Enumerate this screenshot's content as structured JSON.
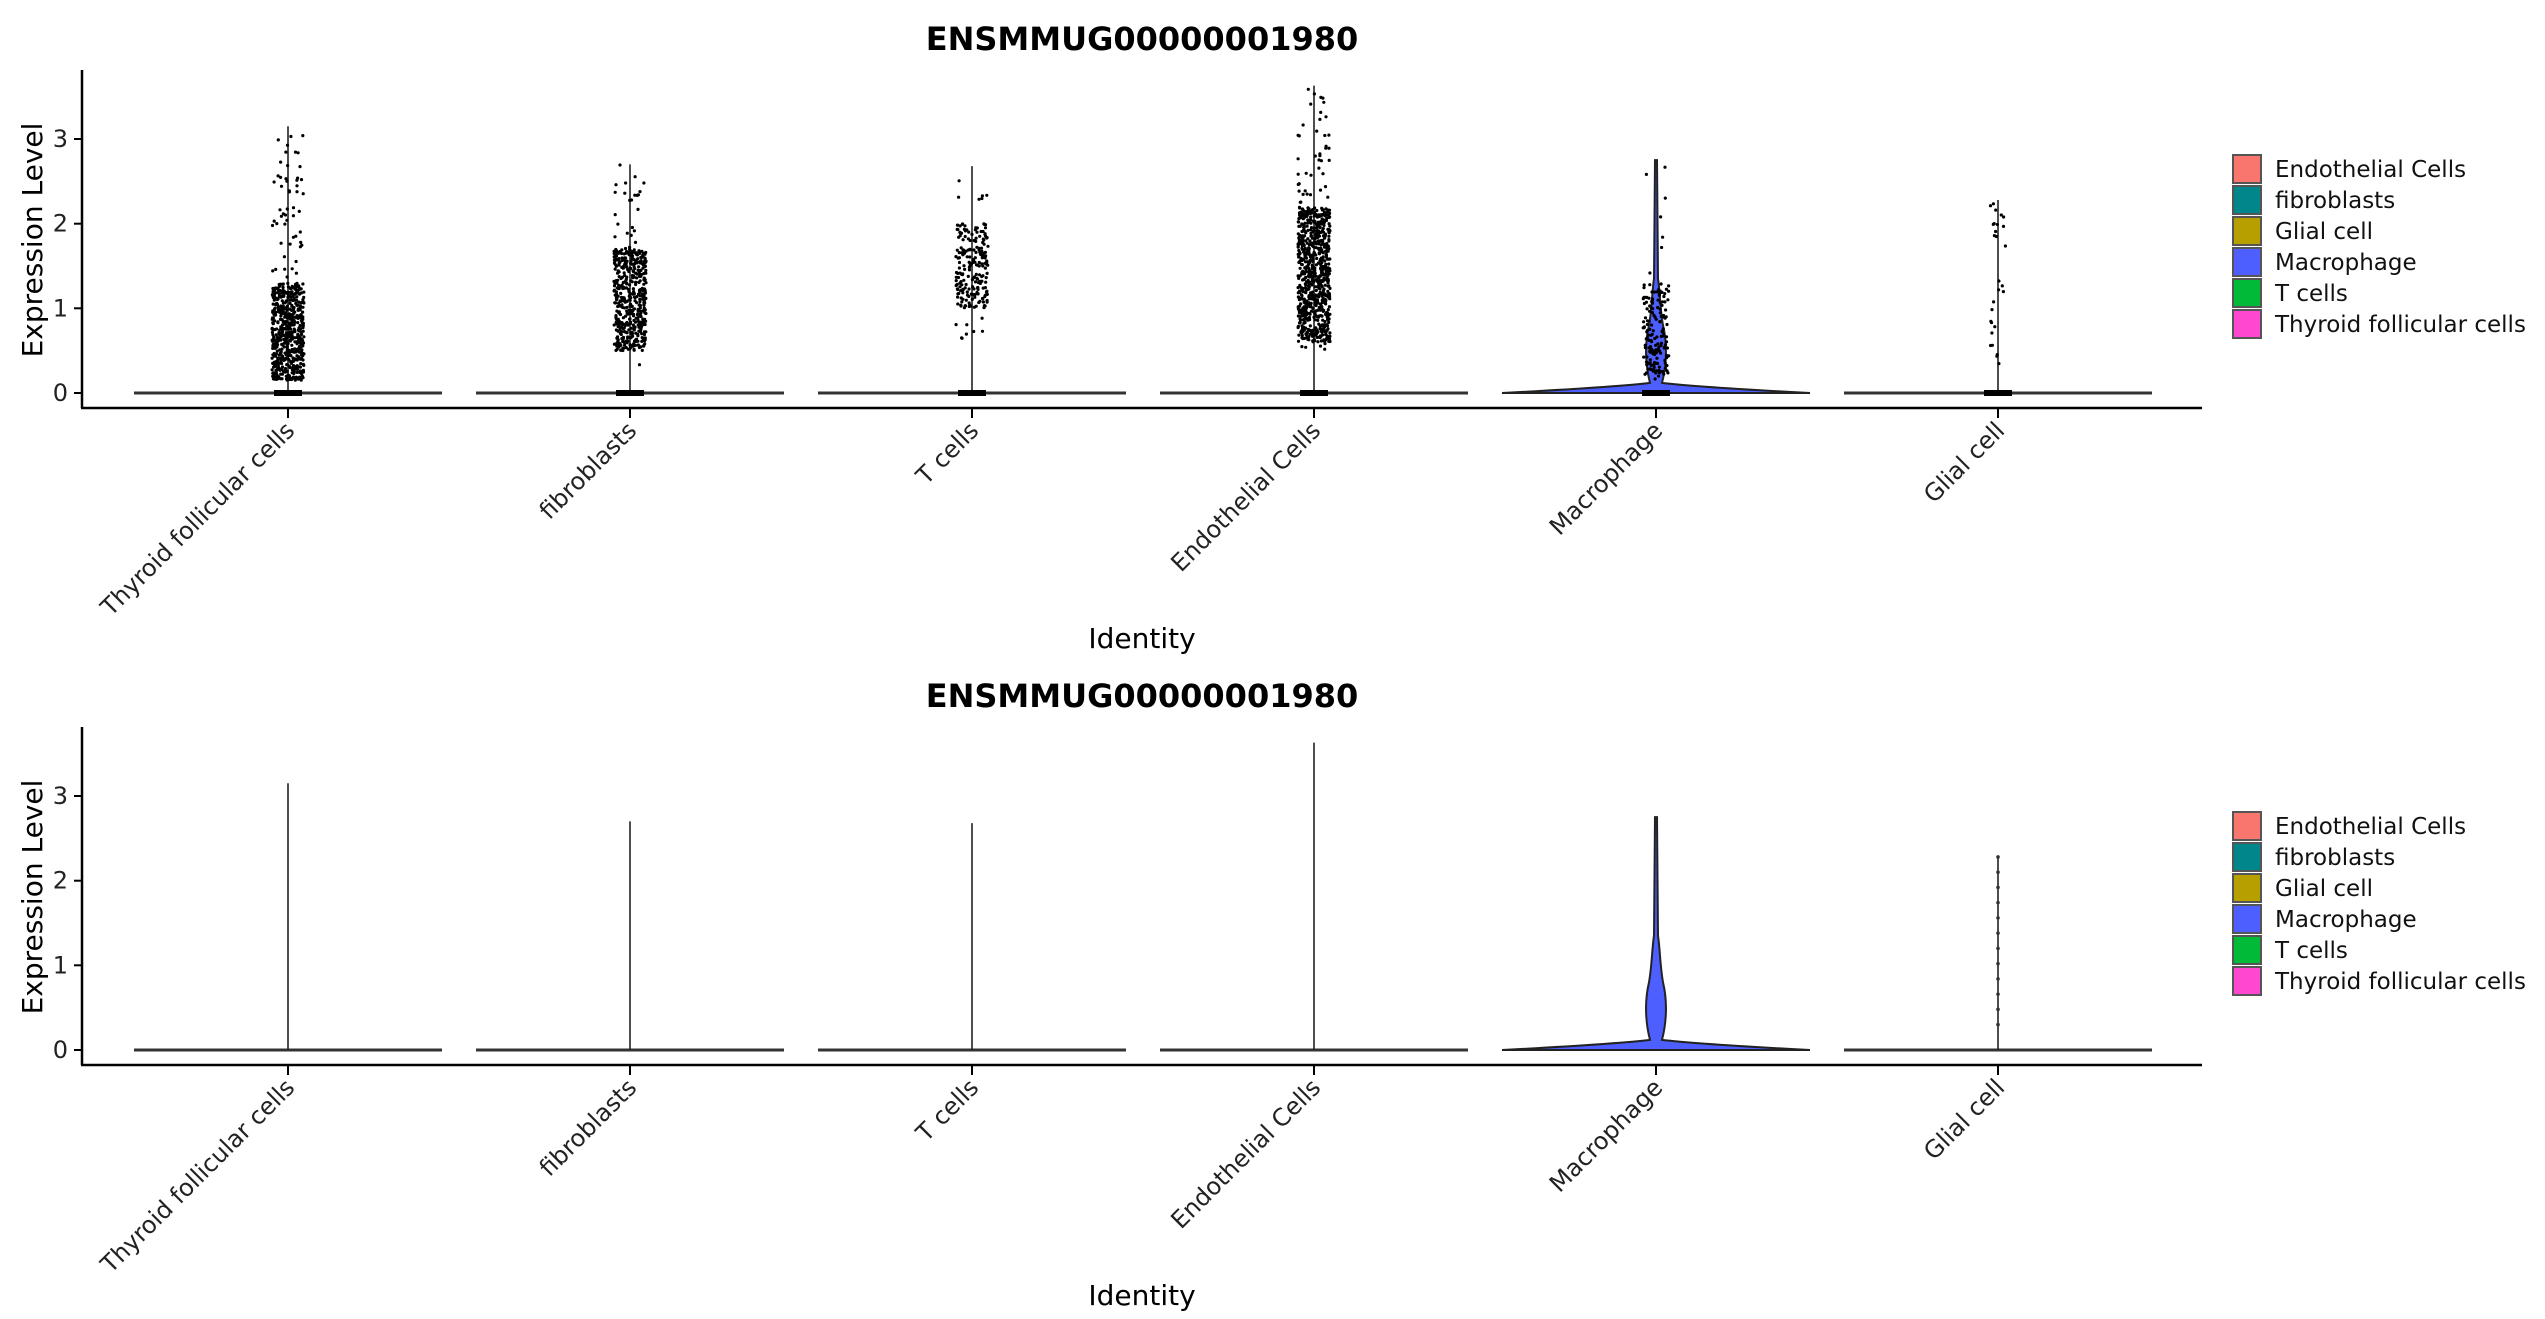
{
  "chart_data": [
    {
      "type": "violin",
      "title": "ENSMMUG00000001980",
      "xlabel": "Identity",
      "ylabel": "Expression Level",
      "yticks": [
        "0",
        "1",
        "2",
        "3"
      ],
      "ylim": [
        -0.15,
        3.8
      ],
      "points_shown": true,
      "categories": [
        "Thyroid follicular cells",
        "fibroblasts",
        "T cells",
        "Endothelial Cells",
        "Macrophage",
        "Glial cell"
      ],
      "series": [
        {
          "name": "Thyroid follicular cells",
          "color": "#FF47CF",
          "max": 3.15,
          "nonzero_range": [
            0.15,
            3.15
          ],
          "dense_range": [
            0.15,
            1.3
          ]
        },
        {
          "name": "fibroblasts",
          "color": "#00868B",
          "max": 2.7,
          "nonzero_range": [
            0.3,
            2.7
          ],
          "dense_range": [
            0.5,
            1.7
          ]
        },
        {
          "name": "T cells",
          "color": "#00BA38",
          "max": 2.68,
          "nonzero_range": [
            0.6,
            2.68
          ],
          "dense_range": [
            1.0,
            2.0
          ]
        },
        {
          "name": "Endothelial Cells",
          "color": "#F8766D",
          "max": 3.63,
          "nonzero_range": [
            0.5,
            3.63
          ],
          "dense_range": [
            0.6,
            2.2
          ]
        },
        {
          "name": "Macrophage",
          "color": "#4D5FFF",
          "max": 2.75,
          "nonzero_range": [
            0.1,
            2.75
          ],
          "dense_range": [
            0.2,
            1.3
          ]
        },
        {
          "name": "Glial cell",
          "color": "#B79F00",
          "max": 2.28,
          "nonzero_range": [
            0.3,
            2.28
          ],
          "dense_range": [
            0.3,
            2.28
          ]
        }
      ],
      "legend": {
        "position": "right",
        "entries": [
          "Endothelial Cells",
          "fibroblasts",
          "Glial cell",
          "Macrophage",
          "T cells",
          "Thyroid follicular cells"
        ]
      }
    },
    {
      "type": "violin",
      "title": "ENSMMUG00000001980",
      "xlabel": "Identity",
      "ylabel": "Expression Level",
      "yticks": [
        "0",
        "1",
        "2",
        "3"
      ],
      "ylim": [
        -0.15,
        3.8
      ],
      "points_shown": false,
      "categories": [
        "Thyroid follicular cells",
        "fibroblasts",
        "T cells",
        "Endothelial Cells",
        "Macrophage",
        "Glial cell"
      ],
      "series": [
        {
          "name": "Thyroid follicular cells",
          "color": "#FF47CF",
          "max": 3.15
        },
        {
          "name": "fibroblasts",
          "color": "#00868B",
          "max": 2.7
        },
        {
          "name": "T cells",
          "color": "#00BA38",
          "max": 2.68
        },
        {
          "name": "Endothelial Cells",
          "color": "#F8766D",
          "max": 3.63
        },
        {
          "name": "Macrophage",
          "color": "#4D5FFF",
          "max": 2.75
        },
        {
          "name": "Glial cell",
          "color": "#B79F00",
          "max": 2.28
        }
      ],
      "legend": {
        "position": "right",
        "entries": [
          "Endothelial Cells",
          "fibroblasts",
          "Glial cell",
          "Macrophage",
          "T cells",
          "Thyroid follicular cells"
        ]
      }
    }
  ],
  "legend": {
    "items": [
      {
        "label": "Endothelial Cells",
        "color": "#F8766D"
      },
      {
        "label": "fibroblasts",
        "color": "#00868B"
      },
      {
        "label": "Glial cell",
        "color": "#B79F00"
      },
      {
        "label": "Macrophage",
        "color": "#4D5FFF"
      },
      {
        "label": "T cells",
        "color": "#00BA38"
      },
      {
        "label": "Thyroid follicular cells",
        "color": "#FF47CF"
      }
    ]
  },
  "panels": [
    {
      "title": "ENSMMUG00000001980",
      "xlabel": "Identity",
      "ylabel": "Expression Level"
    },
    {
      "title": "ENSMMUG00000001980",
      "xlabel": "Identity",
      "ylabel": "Expression Level"
    }
  ]
}
